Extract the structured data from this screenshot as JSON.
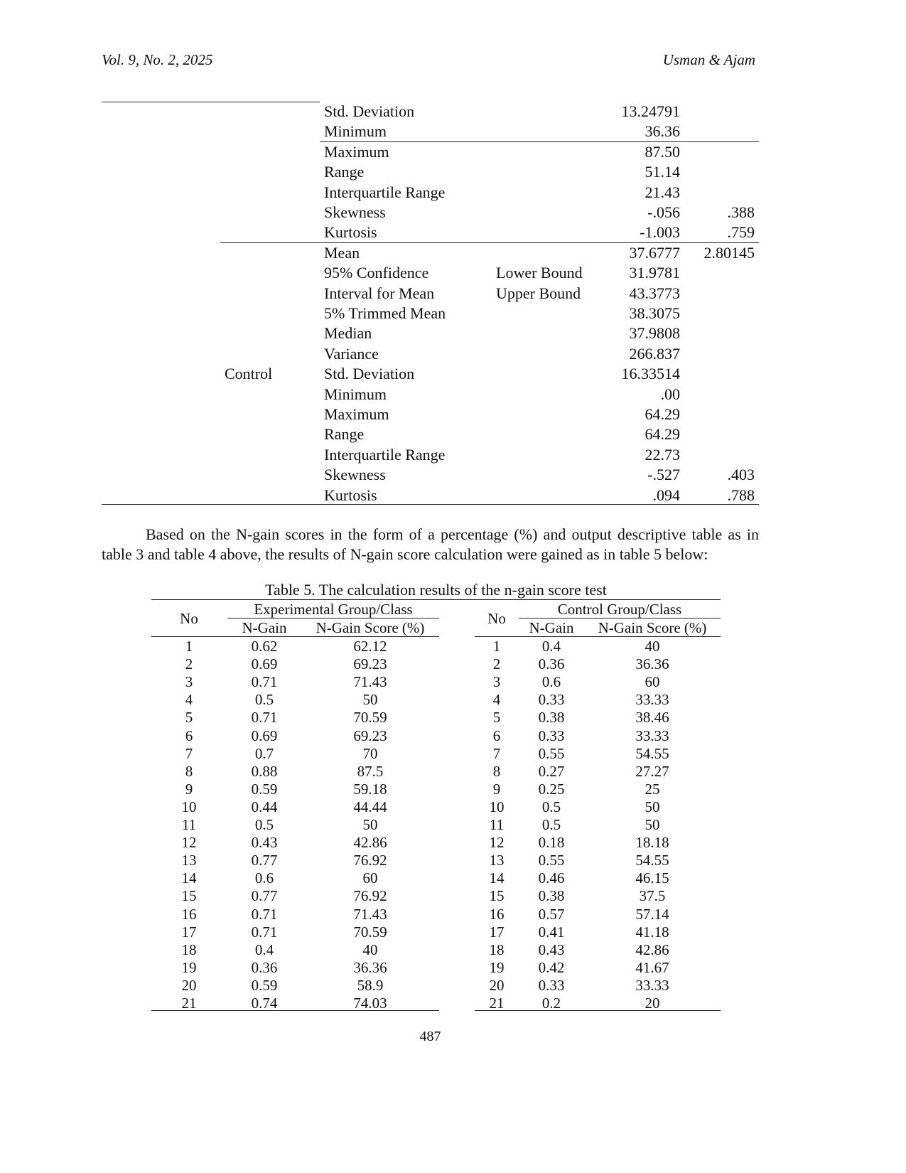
{
  "header": {
    "left": "Vol. 9, No. 2, 2025",
    "right": "Usman & Ajam"
  },
  "stats_table": {
    "experimental_rows": [
      {
        "label": "Std. Deviation",
        "sub": "",
        "stat": "13.24791",
        "se": ""
      },
      {
        "label": "Minimum",
        "sub": "",
        "stat": "36.36",
        "se": ""
      },
      {
        "label": "Maximum",
        "sub": "",
        "stat": "87.50",
        "se": ""
      },
      {
        "label": "Range",
        "sub": "",
        "stat": "51.14",
        "se": ""
      },
      {
        "label": "Interquartile Range",
        "sub": "",
        "stat": "21.43",
        "se": ""
      },
      {
        "label": "Skewness",
        "sub": "",
        "stat": "-.056",
        "se": ".388"
      },
      {
        "label": "Kurtosis",
        "sub": "",
        "stat": "-1.003",
        "se": ".759"
      }
    ],
    "control_group": "Control",
    "control_rows": [
      {
        "label": "Mean",
        "sub": "",
        "stat": "37.6777",
        "se": "2.80145"
      },
      {
        "label": "95% Confidence",
        "sub": "Lower Bound",
        "stat": "31.9781",
        "se": ""
      },
      {
        "label": "Interval for Mean",
        "sub": "Upper Bound",
        "stat": "43.3773",
        "se": ""
      },
      {
        "label": "5% Trimmed Mean",
        "sub": "",
        "stat": "38.3075",
        "se": ""
      },
      {
        "label": "Median",
        "sub": "",
        "stat": "37.9808",
        "se": ""
      },
      {
        "label": "Variance",
        "sub": "",
        "stat": "266.837",
        "se": ""
      },
      {
        "label": "Std. Deviation",
        "sub": "",
        "stat": "16.33514",
        "se": ""
      },
      {
        "label": "Minimum",
        "sub": "",
        "stat": ".00",
        "se": ""
      },
      {
        "label": "Maximum",
        "sub": "",
        "stat": "64.29",
        "se": ""
      },
      {
        "label": "Range",
        "sub": "",
        "stat": "64.29",
        "se": ""
      },
      {
        "label": "Interquartile Range",
        "sub": "",
        "stat": "22.73",
        "se": ""
      },
      {
        "label": "Skewness",
        "sub": "",
        "stat": "-.527",
        "se": ".403"
      },
      {
        "label": "Kurtosis",
        "sub": "",
        "stat": ".094",
        "se": ".788"
      }
    ]
  },
  "paragraph": "Based on the N-gain scores in the form of a percentage (%) and output descriptive table as in table 3 and table 4 above, the results of N-gain score calculation were gained as in table 5 below:",
  "table5": {
    "caption": "Table 5. The calculation results of the n-gain score test",
    "no_header": "No",
    "experimental_header": "Experimental Group/Class",
    "control_header": "Control Group/Class",
    "ngain_header": "N-Gain",
    "score_header": "N-Gain Score (%)",
    "experimental": [
      [
        "1",
        "0.62",
        "62.12"
      ],
      [
        "2",
        "0.69",
        "69.23"
      ],
      [
        "3",
        "0.71",
        "71.43"
      ],
      [
        "4",
        "0.5",
        "50"
      ],
      [
        "5",
        "0.71",
        "70.59"
      ],
      [
        "6",
        "0.69",
        "69.23"
      ],
      [
        "7",
        "0.7",
        "70"
      ],
      [
        "8",
        "0.88",
        "87.5"
      ],
      [
        "9",
        "0.59",
        "59.18"
      ],
      [
        "10",
        "0.44",
        "44.44"
      ],
      [
        "11",
        "0.5",
        "50"
      ],
      [
        "12",
        "0.43",
        "42.86"
      ],
      [
        "13",
        "0.77",
        "76.92"
      ],
      [
        "14",
        "0.6",
        "60"
      ],
      [
        "15",
        "0.77",
        "76.92"
      ],
      [
        "16",
        "0.71",
        "71.43"
      ],
      [
        "17",
        "0.71",
        "70.59"
      ],
      [
        "18",
        "0.4",
        "40"
      ],
      [
        "19",
        "0.36",
        "36.36"
      ],
      [
        "20",
        "0.59",
        "58.9"
      ],
      [
        "21",
        "0.74",
        "74.03"
      ]
    ],
    "control": [
      [
        "1",
        "0.4",
        "40"
      ],
      [
        "2",
        "0.36",
        "36.36"
      ],
      [
        "3",
        "0.6",
        "60"
      ],
      [
        "4",
        "0.33",
        "33.33"
      ],
      [
        "5",
        "0.38",
        "38.46"
      ],
      [
        "6",
        "0.33",
        "33.33"
      ],
      [
        "7",
        "0.55",
        "54.55"
      ],
      [
        "8",
        "0.27",
        "27.27"
      ],
      [
        "9",
        "0.25",
        "25"
      ],
      [
        "10",
        "0.5",
        "50"
      ],
      [
        "11",
        "0.5",
        "50"
      ],
      [
        "12",
        "0.18",
        "18.18"
      ],
      [
        "13",
        "0.55",
        "54.55"
      ],
      [
        "14",
        "0.46",
        "46.15"
      ],
      [
        "15",
        "0.38",
        "37.5"
      ],
      [
        "16",
        "0.57",
        "57.14"
      ],
      [
        "17",
        "0.41",
        "41.18"
      ],
      [
        "18",
        "0.43",
        "42.86"
      ],
      [
        "19",
        "0.42",
        "41.67"
      ],
      [
        "20",
        "0.33",
        "33.33"
      ],
      [
        "21",
        "0.2",
        "20"
      ]
    ]
  },
  "page_number": "487"
}
